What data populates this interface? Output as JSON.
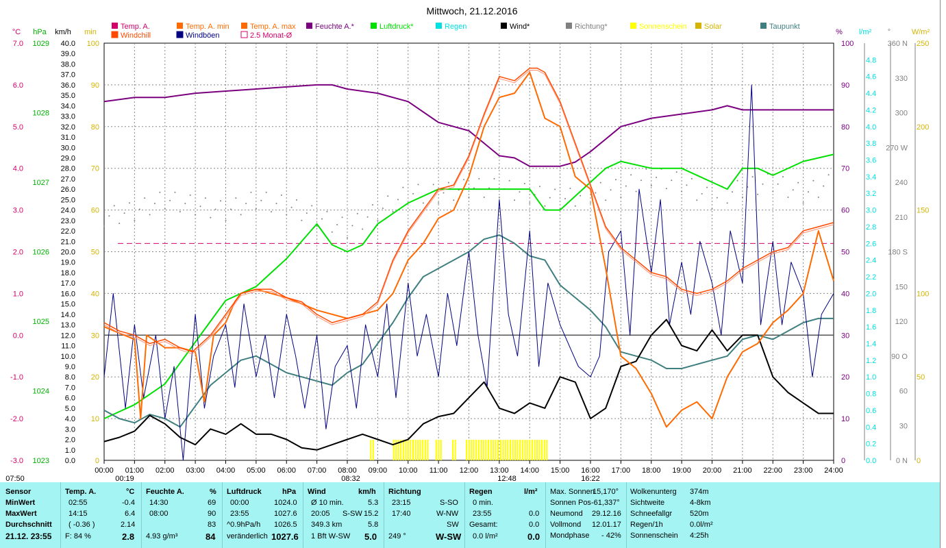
{
  "title": "Mittwoch, 21.12.2016",
  "colors": {
    "temp": "#d4006a",
    "temp_min": "#ff6a00",
    "temp_max": "#ff6a00",
    "windchill": "#ff4a00",
    "feuchte": "#7a0080",
    "luftdruck": "#00e000",
    "regen": "#00e0e0",
    "wind": "#000000",
    "richtung": "#808080",
    "sonnenschein": "#ffff00",
    "solar": "#d4b400",
    "taupunkt": "#3f7f7f",
    "windboeen": "#000080",
    "avg": "#d4006a"
  },
  "legend": {
    "row1": [
      "Temp. A.",
      "Temp. A. min",
      "Temp. A. max",
      "Feuchte A.*",
      "Luftdruck*",
      "Regen",
      "Wind*",
      "Richtung*",
      "Sonnenschein",
      "Solar",
      "Taupunkt"
    ],
    "row2": [
      "Windchill",
      "Windböen",
      "2.5 Monat-Ø"
    ]
  },
  "axes": {
    "unit_c": "°C",
    "unit_hpa": "hPa",
    "unit_kmh": "km/h",
    "unit_min": "min",
    "unit_pct": "%",
    "unit_lm2": "l/m²",
    "unit_deg": "°",
    "unit_wm2": "W/m²",
    "c_ticks": [
      "7.0",
      "6.0",
      "5.0",
      "4.0",
      "3.0",
      "2.0",
      "1.0",
      "0.0",
      "-1.0",
      "-2.0",
      "-3.0"
    ],
    "hpa_ticks": [
      "1029",
      "1028",
      "1027",
      "1026",
      "1025",
      "1024",
      "1023"
    ],
    "kmh_ticks": [
      "40.0",
      "39.0",
      "38.0",
      "37.0",
      "36.0",
      "35.0",
      "34.0",
      "33.0",
      "32.0",
      "31.0",
      "30.0",
      "29.0",
      "28.0",
      "27.0",
      "26.0",
      "25.0",
      "24.0",
      "23.0",
      "22.0",
      "21.0",
      "20.0",
      "19.0",
      "18.0",
      "17.0",
      "16.0",
      "15.0",
      "14.0",
      "13.0",
      "12.0",
      "11.0",
      "10.0",
      "9.0",
      "8.0",
      "7.0",
      "6.0",
      "5.0",
      "4.0",
      "3.0",
      "2.0",
      "1.0",
      "0.0"
    ],
    "min_ticks": [
      "100",
      "90",
      "80",
      "70",
      "60",
      "50",
      "40",
      "30",
      "20",
      "10",
      "0"
    ],
    "pct_ticks": [
      "100",
      "90",
      "80",
      "70",
      "60",
      "50",
      "40",
      "30",
      "20",
      "10",
      "0"
    ],
    "lm2_ticks": [
      "4.8",
      "4.6",
      "4.4",
      "4.2",
      "4.0",
      "3.8",
      "3.6",
      "3.4",
      "3.2",
      "3.0",
      "2.8",
      "2.6",
      "2.4",
      "2.2",
      "2.0",
      "1.8",
      "1.6",
      "1.4",
      "1.2",
      "1.0",
      "0.8",
      "0.6",
      "0.4",
      "0.2",
      "0.0"
    ],
    "deg_ticks": [
      "360 N",
      "330",
      "300",
      "270 W",
      "240",
      "210",
      "180 S",
      "150",
      "120",
      "90 O",
      "60",
      "30",
      "0 N"
    ],
    "wm2_ticks": [
      "250",
      "200",
      "150",
      "100",
      "50",
      "0"
    ],
    "x_ticks": [
      "00:00",
      "01:00",
      "02:00",
      "03:00",
      "04:00",
      "05:00",
      "06:00",
      "07:00",
      "08:00",
      "09:00",
      "10:00",
      "11:00",
      "12:00",
      "13:00",
      "14:00",
      "15:00",
      "16:00",
      "17:00",
      "18:00",
      "19:00",
      "20:00",
      "21:00",
      "22:00",
      "23:00",
      "24:00"
    ],
    "markers": [
      "07:50",
      "00:19",
      "08:32",
      "12:48",
      "16:22"
    ]
  },
  "chart_data": {
    "type": "line",
    "title": "Mittwoch, 21.12.2016",
    "x_unit": "hours",
    "x_range": [
      0,
      24
    ],
    "series": [
      {
        "name": "Temp. A.",
        "unit": "°C",
        "x": [
          0,
          0.5,
          1,
          1.5,
          2,
          2.5,
          2.9,
          3.5,
          4,
          4.5,
          5,
          5.5,
          6,
          6.5,
          7,
          7.5,
          8,
          8.5,
          9,
          9.5,
          10,
          10.5,
          11,
          11.5,
          12,
          12.5,
          13,
          13.5,
          14,
          14.25,
          14.5,
          15,
          15.5,
          16,
          16.5,
          17,
          17.5,
          18,
          18.5,
          19,
          19.5,
          20,
          20.5,
          21,
          21.5,
          22,
          22.5,
          23,
          23.5,
          24
        ],
        "y": [
          0.3,
          0.1,
          0.0,
          -0.2,
          -0.1,
          -0.3,
          -0.4,
          0.0,
          0.5,
          1.0,
          1.1,
          1.1,
          0.9,
          0.8,
          0.5,
          0.3,
          0.4,
          0.5,
          0.8,
          1.8,
          2.5,
          3.0,
          3.5,
          3.6,
          4.3,
          5.3,
          6.2,
          6.1,
          6.4,
          6.4,
          6.3,
          5.6,
          4.6,
          3.6,
          2.6,
          2.1,
          1.8,
          1.5,
          1.4,
          1.1,
          1.0,
          1.1,
          1.3,
          1.6,
          1.8,
          2.0,
          2.1,
          2.5,
          2.6,
          2.7
        ]
      },
      {
        "name": "Temp. A. min",
        "unit": "°C",
        "x": [
          0,
          1,
          1.2,
          1.4,
          2,
          2.5,
          3,
          3.3,
          3.6,
          4,
          4.3,
          4.5,
          5,
          6,
          7,
          8,
          9,
          9.5,
          10,
          10.5,
          11,
          11.5,
          12,
          12.5,
          13,
          13.5,
          14,
          14.5,
          15,
          15.5,
          16,
          16.5,
          17,
          17.5,
          18,
          18.5,
          19,
          19.5,
          20,
          20.5,
          21,
          21.5,
          22,
          22.5,
          23,
          23.5,
          24
        ],
        "y": [
          0.2,
          -0.1,
          -2.0,
          0.0,
          -0.3,
          -0.3,
          -0.4,
          -1.6,
          0.0,
          0.3,
          0.8,
          1.0,
          1.1,
          0.9,
          0.6,
          0.4,
          0.6,
          1.0,
          1.8,
          2.2,
          2.8,
          3.0,
          3.8,
          5.0,
          5.7,
          5.8,
          6.3,
          5.2,
          5.0,
          3.8,
          3.5,
          1.6,
          -0.5,
          -0.8,
          -1.4,
          -2.2,
          -1.8,
          -1.6,
          -2.0,
          -1.0,
          -0.4,
          -0.2,
          0.3,
          0.6,
          1.0,
          2.5,
          1.3
        ]
      },
      {
        "name": "Feuchte A.*",
        "unit": "%",
        "x": [
          0,
          1,
          2,
          3,
          4,
          5,
          6,
          7,
          7.5,
          8,
          9,
          10,
          11,
          12,
          13,
          13.5,
          14,
          14.5,
          15,
          15.5,
          16,
          16.5,
          17,
          18,
          19,
          20,
          20.5,
          21,
          22,
          23,
          24
        ],
        "y": [
          86,
          87,
          87,
          88,
          88.5,
          89,
          89.5,
          90,
          90,
          89,
          88,
          86,
          81,
          79,
          73,
          72.5,
          70.5,
          70.5,
          70.5,
          71.5,
          74,
          77,
          80,
          82,
          83,
          84,
          85,
          84,
          84,
          84,
          84
        ]
      },
      {
        "name": "Luftdruck*",
        "unit": "hPa",
        "x": [
          0,
          1,
          2,
          3,
          4,
          5,
          6,
          7,
          7.5,
          8,
          8.5,
          9,
          10,
          11,
          12,
          13,
          14,
          14.5,
          15,
          15.5,
          16,
          16.5,
          17,
          18,
          19,
          20,
          20.5,
          21,
          21.5,
          22,
          23,
          24
        ],
        "y": [
          1023.6,
          1023.8,
          1024.1,
          1024.7,
          1025.3,
          1025.5,
          1025.9,
          1026.4,
          1026.1,
          1026.0,
          1026.1,
          1026.4,
          1026.7,
          1026.9,
          1026.9,
          1026.9,
          1026.9,
          1026.6,
          1026.6,
          1026.8,
          1027.0,
          1027.2,
          1027.3,
          1027.2,
          1027.2,
          1027.0,
          1026.9,
          1027.2,
          1027.2,
          1027.1,
          1027.3,
          1027.4
        ]
      },
      {
        "name": "Wind*",
        "unit": "km/h",
        "x": [
          0,
          0.5,
          1,
          1.5,
          2,
          2.5,
          3,
          3.5,
          4,
          4.5,
          5,
          5.5,
          6,
          6.5,
          7,
          7.5,
          8,
          8.5,
          9,
          9.5,
          10,
          10.5,
          11,
          11.5,
          12,
          12.5,
          13,
          13.5,
          14,
          14.5,
          15,
          15.5,
          16,
          16.5,
          17,
          17.5,
          18,
          18.5,
          19,
          19.5,
          20,
          20.5,
          21,
          21.5,
          22,
          22.5,
          23,
          23.5,
          24
        ],
        "y": [
          1.8,
          2.2,
          2.8,
          4.3,
          3.5,
          2.2,
          1.5,
          3.0,
          2.5,
          3.5,
          2.5,
          2.5,
          2.0,
          1.2,
          1.0,
          1.5,
          2.0,
          2.5,
          2.0,
          1.5,
          2.0,
          3.5,
          4.2,
          4.5,
          6.0,
          7.5,
          5.0,
          4.5,
          5.5,
          5.0,
          8.0,
          7.5,
          4.0,
          5.0,
          9.0,
          9.5,
          12.0,
          13.5,
          11.0,
          10.5,
          12.5,
          10.5,
          12.0,
          12.0,
          8.0,
          6.5,
          5.5,
          4.5,
          4.5
        ]
      },
      {
        "name": "Richtung*",
        "unit": "°",
        "x": [
          0,
          1,
          2,
          3,
          4,
          5,
          6,
          7,
          8,
          9,
          10,
          11,
          12,
          13,
          14,
          15,
          16,
          17,
          18,
          19,
          20,
          21,
          22,
          23,
          24
        ],
        "y": [
          210,
          215,
          225,
          220,
          215,
          225,
          220,
          210,
          200,
          215,
          230,
          230,
          235,
          235,
          230,
          225,
          230,
          235,
          245,
          240,
          225,
          235,
          240,
          230,
          240
        ]
      },
      {
        "name": "Taupunkt",
        "unit": "°C",
        "x": [
          0,
          0.5,
          1,
          1.5,
          2,
          2.5,
          3,
          3.5,
          4,
          4.5,
          5,
          5.5,
          6,
          6.5,
          7,
          7.5,
          8,
          8.5,
          9,
          9.5,
          10,
          10.5,
          11,
          11.5,
          12,
          12.5,
          13,
          13.5,
          14,
          14.5,
          15,
          15.5,
          16,
          16.5,
          17,
          17.5,
          18,
          18.5,
          19,
          19.5,
          20,
          20.5,
          21,
          21.5,
          22,
          22.5,
          23,
          23.5,
          24
        ],
        "y": [
          -1.8,
          -2.0,
          -2.1,
          -1.9,
          -2.0,
          -2.2,
          -1.7,
          -1.2,
          -0.9,
          -0.6,
          -0.5,
          -0.7,
          -0.9,
          -1.0,
          -1.1,
          -1.2,
          -0.9,
          -0.7,
          -0.2,
          0.3,
          0.9,
          1.4,
          1.6,
          1.8,
          2.0,
          2.3,
          2.4,
          2.2,
          1.9,
          1.8,
          1.2,
          0.9,
          0.6,
          0.2,
          -0.4,
          -0.5,
          -0.6,
          -0.8,
          -0.8,
          -0.7,
          -0.6,
          -0.5,
          -0.1,
          0.0,
          -0.1,
          0.1,
          0.3,
          0.4,
          0.4
        ]
      },
      {
        "name": "Windböen",
        "unit": "km/h",
        "x": [
          0,
          0.3,
          0.7,
          1,
          1.3,
          1.7,
          2,
          2.3,
          2.6,
          3,
          3.3,
          3.6,
          4,
          4.3,
          4.6,
          5,
          5.3,
          5.6,
          6,
          6.3,
          6.6,
          7,
          7.3,
          7.6,
          8,
          8.3,
          8.6,
          9,
          9.3,
          9.6,
          10,
          10.3,
          10.6,
          11,
          11.3,
          11.6,
          12,
          12.3,
          12.6,
          13,
          13.3,
          13.6,
          14,
          14.3,
          14.6,
          15,
          15.3,
          15.6,
          16,
          16.3,
          16.6,
          17,
          17.3,
          17.6,
          18,
          18.3,
          18.6,
          19,
          19.3,
          19.6,
          20,
          20.3,
          20.6,
          21,
          21.3,
          21.6,
          22,
          22.3,
          22.6,
          23,
          23.3,
          23.6,
          24
        ],
        "y": [
          8,
          16,
          5,
          13,
          6,
          12,
          4,
          9,
          0,
          14,
          5,
          10,
          13,
          7,
          15,
          8,
          12,
          6,
          14,
          10,
          5,
          12,
          3,
          9,
          11,
          5,
          13,
          8,
          15,
          6,
          17,
          10,
          14,
          8,
          16,
          11,
          20,
          12,
          7,
          25,
          14,
          10,
          22,
          9,
          17,
          13,
          11,
          9,
          8,
          10,
          20,
          22,
          12,
          26,
          18,
          25,
          13,
          19,
          14,
          21,
          17,
          12,
          22,
          17,
          36,
          13,
          21,
          13,
          19,
          16,
          8,
          14,
          16
        ]
      }
    ],
    "sonnenschein": {
      "unit": "min",
      "ranges": [
        [
          8.75,
          8.9
        ],
        [
          9.5,
          10.7
        ],
        [
          10.9,
          11.1
        ],
        [
          11.45,
          11.55
        ],
        [
          11.9,
          14.6
        ]
      ],
      "height_pct": 4
    }
  },
  "bottom": {
    "sensor_h": "Sensor",
    "min_l": "MinWert",
    "max_l": "MaxWert",
    "avg_l": "Durchschnitt",
    "stamp": "21.12. 23:55",
    "temp": {
      "h": "Temp. A.",
      "u": "°C",
      "min_t": "02:55",
      "min_v": "-0.4",
      "max_t": "14:15",
      "max_v": "6.4",
      "avg_a": "( -0.36 )",
      "avg_v": "2.14",
      "f": "F: 84 %",
      "cur": "2.8"
    },
    "feuchte": {
      "h": "Feuchte A.",
      "u": "%",
      "min_t": "14:30",
      "min_v": "69",
      "max_t": "08:00",
      "max_v": "90",
      "avg_v": "83",
      "abs": "4.93 g/m³",
      "cur": "84"
    },
    "luft": {
      "h": "Luftdruck",
      "u": "hPa",
      "min_t": "00:00",
      "min_v": "1024.0",
      "max_t": "23:55",
      "max_v": "1027.6",
      "trend": "^0.9hPa/h",
      "avg_v": "1026.5",
      "var": "veränderlich",
      "cur": "1027.6"
    },
    "wind": {
      "h": "Wind",
      "u": "km/h",
      "l1": "Ø 10 min.",
      "v1": "5.3",
      "l2t": "20:05",
      "l2d": "S-SW",
      "v2": "15.2",
      "l3": "349.3 km",
      "v3": "5.8",
      "l4": "1 Bft W-SW",
      "cur": "5.0"
    },
    "richtung": {
      "h": "Richtung",
      "t1": "23:15",
      "d1": "S-SO",
      "t2": "17:40",
      "d2": "W-NW",
      "d3": "SW",
      "deg": "249 °",
      "cur": "W-SW"
    },
    "regen": {
      "h": "Regen",
      "u": "l/m²",
      "l1": "0 min.",
      "t2": "23:55",
      "v2": "0.0",
      "l3": "Gesamt:",
      "v3": "0.0",
      "l4": "0.0 l/m²",
      "cur": "0.0"
    },
    "sun": {
      "l1": "Max. Sonnen",
      "v1": "15,170°",
      "l2": "Sonnen Pos",
      "v2": "-61,337°",
      "l3": "Neumond",
      "v3": "29.12.16",
      "l4": "Vollmond",
      "v4": "12.01.17",
      "l5": "Mondphase",
      "v5": "- 42%"
    },
    "misc": {
      "l1": "Wolkenunterg",
      "v1": "374m",
      "l2": "Sichtweite",
      "v2": "4-8km",
      "l3": "Schneefallgr",
      "v3": "520m",
      "l4": "Regen/1h",
      "v4": "0.0l/m²",
      "l5": "Sonnenschein",
      "v5": "4:25h"
    }
  }
}
